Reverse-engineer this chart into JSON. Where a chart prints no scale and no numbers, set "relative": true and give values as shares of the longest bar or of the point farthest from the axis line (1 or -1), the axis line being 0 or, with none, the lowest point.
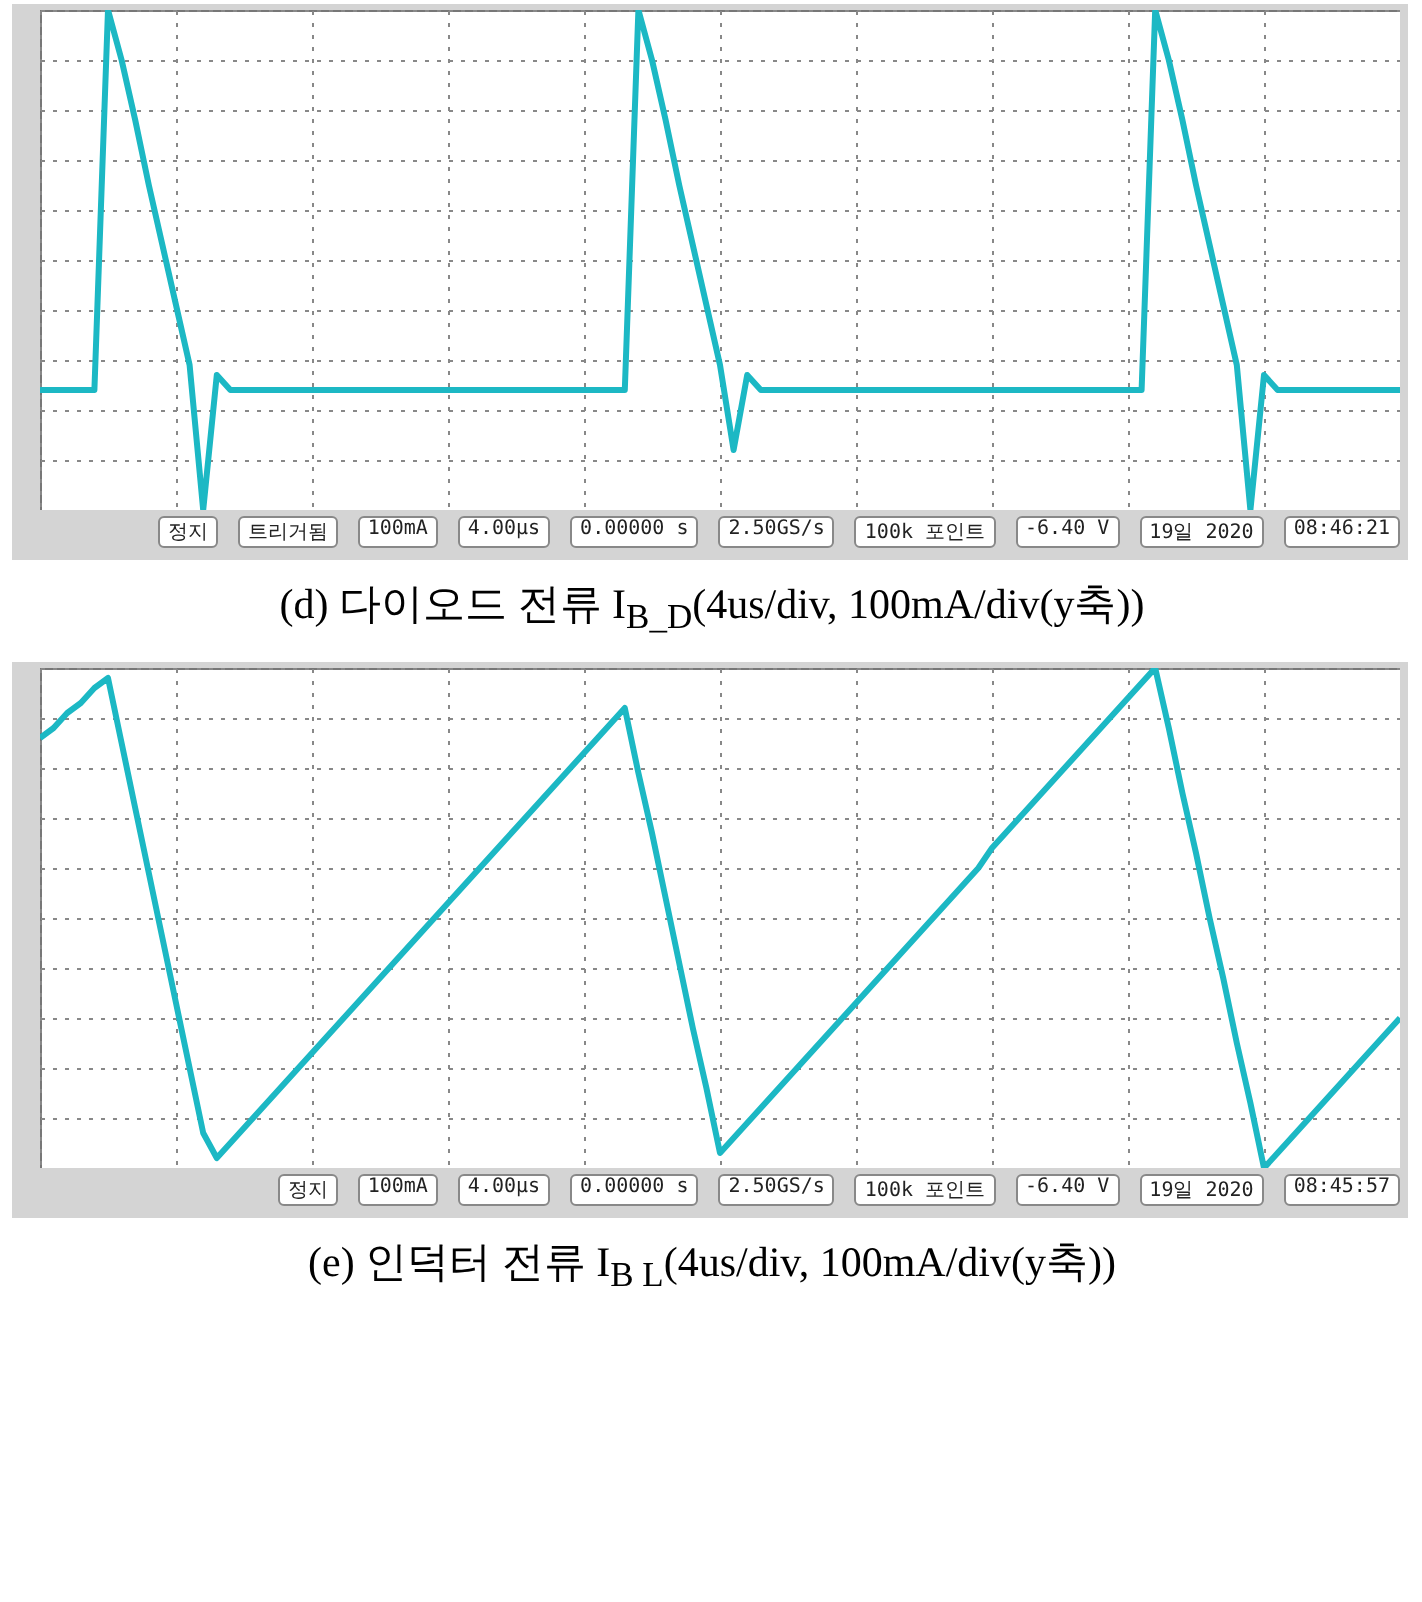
{
  "chart_data": [
    {
      "type": "line",
      "title": "(d) 다이오드 전류 I$_{B_D}$(4us/div, 100mA/div(y축))",
      "relative": true,
      "grid": true,
      "categories": [
        null,
        null,
        null,
        null,
        null,
        null,
        null,
        null,
        null,
        null,
        null,
        null,
        null,
        null,
        null,
        null,
        null,
        null,
        null,
        null,
        null,
        null,
        null,
        null,
        null,
        null,
        null,
        null,
        null,
        null,
        null,
        null,
        null,
        null,
        null,
        null,
        null,
        null,
        null,
        null,
        null,
        null,
        null,
        null,
        null,
        null,
        null,
        null,
        null,
        null,
        null,
        null,
        null,
        null,
        null,
        null,
        null,
        null,
        null,
        null,
        null,
        null,
        null,
        null,
        null,
        null,
        null,
        null,
        null,
        null,
        null,
        null,
        null,
        null,
        null,
        null,
        null,
        null,
        null,
        null,
        null,
        null,
        null,
        null,
        null,
        null,
        null,
        null,
        null,
        null,
        null,
        null,
        null,
        null,
        null,
        null,
        null,
        null,
        null,
        null,
        null
      ],
      "series": [
        {
          "color": "#1cb8c4",
          "values": [
            0.24,
            0.24,
            0.24,
            0.24,
            0.24,
            1,
            0.9,
            0.78,
            0.65,
            0.53,
            0.41,
            0.29,
            0,
            0.27,
            0.24,
            0.24,
            0.24,
            0.24,
            0.24,
            0.24,
            0.24,
            0.24,
            0.24,
            0.24,
            0.24,
            0.24,
            0.24,
            0.24,
            0.24,
            0.24,
            0.24,
            0.24,
            0.24,
            0.24,
            0.24,
            0.24,
            0.24,
            0.24,
            0.24,
            0.24,
            0.24,
            0.24,
            0.24,
            0.24,
            1,
            0.9,
            0.78,
            0.65,
            0.53,
            0.41,
            0.29,
            0.12,
            0.27,
            0.24,
            0.24,
            0.24,
            0.24,
            0.24,
            0.24,
            0.24,
            0.24,
            0.24,
            0.24,
            0.24,
            0.24,
            0.24,
            0.24,
            0.24,
            0.24,
            0.24,
            0.24,
            0.24,
            0.24,
            0.24,
            0.24,
            0.24,
            0.24,
            0.24,
            0.24,
            0.24,
            0.24,
            0.24,
            1,
            0.9,
            0.78,
            0.65,
            0.53,
            0.41,
            0.29,
            0,
            0.27,
            0.24,
            0.24,
            0.24,
            0.24,
            0.24,
            0.24,
            0.24,
            0.24,
            0.24,
            0.24
          ]
        }
      ],
      "annotations": [
        "정지",
        "트리거됨",
        "100mA",
        "4.00µs",
        "0.00000 s",
        "2.50GS/s",
        "100k 포인트",
        "-6.40 V",
        "19일 2020",
        "08:46:21"
      ]
    },
    {
      "type": "line",
      "title": "(e) 인덕터 전류 I$_{B L}$(4us/div, 100mA/div(y축))",
      "relative": true,
      "grid": true,
      "categories": [
        null,
        null,
        null,
        null,
        null,
        null,
        null,
        null,
        null,
        null,
        null,
        null,
        null,
        null,
        null,
        null,
        null,
        null,
        null,
        null,
        null,
        null,
        null,
        null,
        null,
        null,
        null,
        null,
        null,
        null,
        null,
        null,
        null,
        null,
        null,
        null,
        null,
        null,
        null,
        null,
        null,
        null,
        null,
        null,
        null,
        null,
        null,
        null,
        null,
        null,
        null,
        null,
        null,
        null,
        null,
        null,
        null,
        null,
        null,
        null,
        null,
        null,
        null,
        null,
        null,
        null,
        null,
        null,
        null,
        null,
        null,
        null,
        null,
        null,
        null,
        null,
        null,
        null,
        null,
        null,
        null,
        null,
        null,
        null,
        null,
        null,
        null,
        null,
        null,
        null,
        null,
        null,
        null,
        null,
        null,
        null,
        null,
        null,
        null,
        null,
        null
      ],
      "series": [
        {
          "color": "#1cb8c4",
          "values": [
            0.86,
            0.88,
            0.91,
            0.93,
            0.96,
            0.98,
            0.85,
            0.72,
            0.59,
            0.46,
            0.33,
            0.2,
            0.07,
            0.02,
            0.05,
            0.08,
            0.11,
            0.14,
            0.17,
            0.2,
            0.23,
            0.26,
            0.29,
            0.32,
            0.35,
            0.38,
            0.41,
            0.44,
            0.47,
            0.5,
            0.53,
            0.56,
            0.59,
            0.62,
            0.65,
            0.68,
            0.71,
            0.74,
            0.77,
            0.8,
            0.83,
            0.86,
            0.89,
            0.92,
            0.79,
            0.67,
            0.54,
            0.41,
            0.28,
            0.16,
            0.03,
            0.06,
            0.09,
            0.12,
            0.15,
            0.18,
            0.21,
            0.24,
            0.27,
            0.3,
            0.33,
            0.36,
            0.39,
            0.42,
            0.45,
            0.48,
            0.51,
            0.54,
            0.57,
            0.6,
            0.64,
            0.67,
            0.7,
            0.73,
            0.76,
            0.79,
            0.82,
            0.85,
            0.88,
            0.91,
            0.94,
            0.97,
            1,
            0.88,
            0.75,
            0.63,
            0.5,
            0.38,
            0.25,
            0.13,
            0,
            0.03,
            0.06,
            0.09,
            0.12,
            0.15,
            0.18,
            0.21,
            0.24,
            0.27,
            0.3
          ]
        }
      ],
      "annotations": [
        "정지",
        "100mA",
        "4.00µs",
        "0.00000 s",
        "2.50GS/s",
        "100k 포인트",
        "-6.40 V",
        "19일 2020",
        "08:45:57"
      ]
    }
  ]
}
